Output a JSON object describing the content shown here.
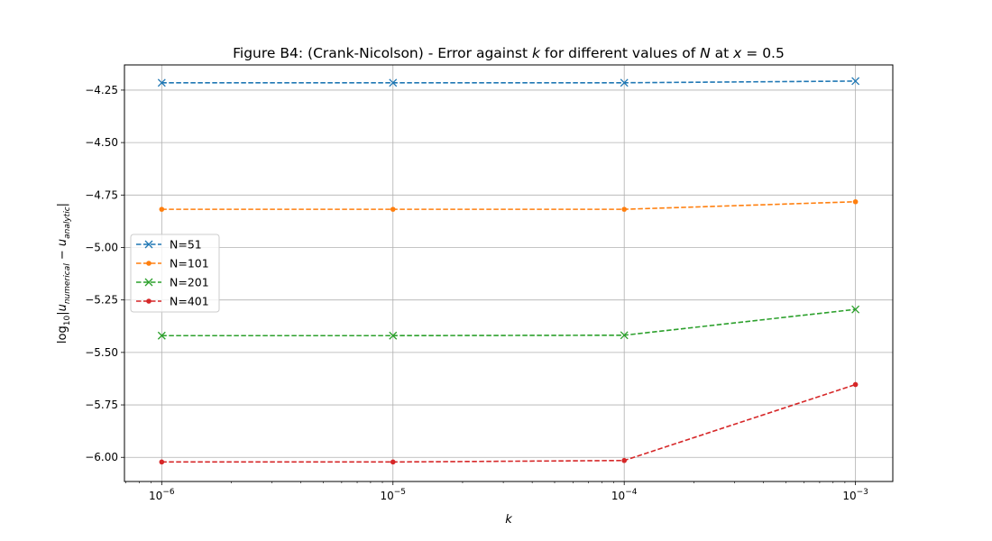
{
  "chart_data": {
    "type": "line",
    "title_parts": [
      {
        "text": "Figure B4: (Crank-Nicolson) - Error against ",
        "italic": false
      },
      {
        "text": "k",
        "italic": true
      },
      {
        "text": " for different values of ",
        "italic": false
      },
      {
        "text": "N",
        "italic": true
      },
      {
        "text": " at ",
        "italic": false
      },
      {
        "text": "x",
        "italic": true
      },
      {
        "text": " = 0.5",
        "italic": false
      }
    ],
    "xlabel": "k",
    "ylabel": {
      "prefix": "log",
      "sub": "10",
      "body": "|u",
      "sub1": "numerical",
      "mid": " − u",
      "sub2": "analytic",
      "suffix": "|"
    },
    "x_scale": "log",
    "x": [
      1e-06,
      1e-05,
      0.0001,
      0.001
    ],
    "x_tick_exponents": [
      "-6",
      "-5",
      "-4",
      "-3"
    ],
    "xlim": [
      6.9e-07,
      0.00145
    ],
    "ylim": [
      -6.115,
      -4.13
    ],
    "y_ticks": [
      -6.0,
      -5.75,
      -5.5,
      -5.25,
      -5.0,
      -4.75,
      -4.5,
      -4.25
    ],
    "y_tick_labels": [
      "−6.00",
      "−5.75",
      "−5.50",
      "−5.25",
      "−5.00",
      "−4.75",
      "−4.50",
      "−4.25"
    ],
    "grid": true,
    "legend_position": "center-left",
    "series": [
      {
        "name": "N=51",
        "color": "#1f77b4",
        "marker": "x",
        "values": [
          -4.215,
          -4.215,
          -4.215,
          -4.207
        ]
      },
      {
        "name": "N=101",
        "color": "#ff7f0e",
        "marker": "dot",
        "values": [
          -4.818,
          -4.818,
          -4.818,
          -4.782
        ]
      },
      {
        "name": "N=201",
        "color": "#2ca02c",
        "marker": "x",
        "values": [
          -5.42,
          -5.42,
          -5.418,
          -5.295
        ]
      },
      {
        "name": "N=401",
        "color": "#d62728",
        "marker": "dot",
        "values": [
          -6.022,
          -6.022,
          -6.015,
          -5.653
        ]
      }
    ]
  }
}
